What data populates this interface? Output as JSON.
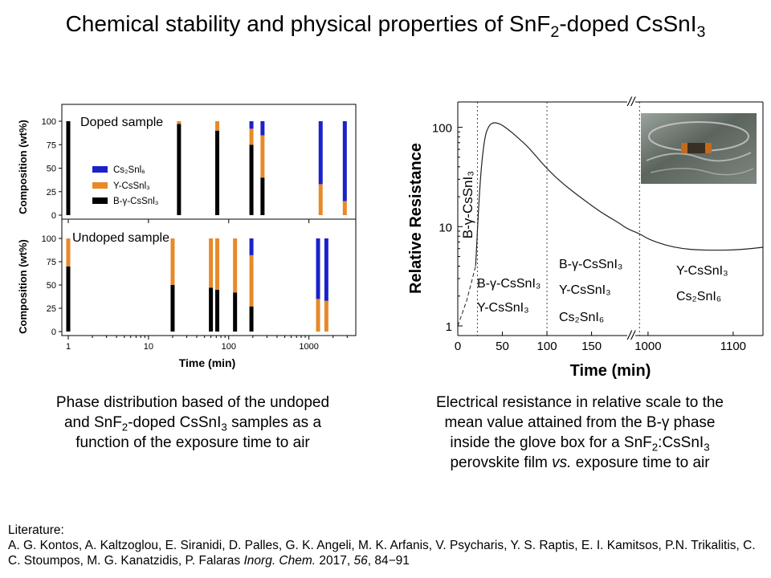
{
  "title": {
    "prefix": "Chemical stability and physical properties of SnF",
    "sub1": "2",
    "mid": "-doped CsSnI",
    "sub2": "3"
  },
  "colors": {
    "black": "#000000",
    "orange": "#e8892a",
    "blue": "#1a22c9",
    "dashed_gray": "#444444"
  },
  "left_chart": {
    "ylabel": "Composition (wt%)",
    "xlabel": "Time (min)",
    "x_ticks": [
      "1",
      "10",
      "100",
      "1000"
    ],
    "y_ticks": [
      "0",
      "25",
      "50",
      "75",
      "100"
    ],
    "panel_top_label": "Doped sample",
    "panel_bottom_label": "Undoped sample",
    "legend": [
      {
        "key": "cs2snl6",
        "label": "Cs₂Snl₆",
        "color": "#1a22c9"
      },
      {
        "key": "gamma",
        "label": "Y-CsSnl₃",
        "color": "#e8892a"
      },
      {
        "key": "bgamma",
        "label": "B-γ-CsSnl₃",
        "color": "#000000"
      }
    ]
  },
  "right_chart": {
    "ylabel": "Relative Resistance",
    "xlabel": "Time (min)",
    "x_ticks_left": [
      "0",
      "50",
      "100",
      "150"
    ],
    "x_ticks_right": [
      "1000",
      "1100"
    ],
    "y_ticks": [
      "1",
      "10",
      "100"
    ],
    "break_mark": "//",
    "region1_vertical": "B-γ-CsSnI₃",
    "region2_line1": "B-γ-CsSnI₃",
    "region2_line2": "Y-CsSnI₃",
    "region3_line1": "B-γ-CsSnI₃",
    "region3_line2": "Y-CsSnI₃",
    "region3_line3": "Cs₂SnI₆",
    "region4_line1": "Y-CsSnI₃",
    "region4_line2": "Cs₂SnI₆"
  },
  "captions": {
    "left_l1": "Phase distribution based of the undoped",
    "left_l2a": "and SnF",
    "left_l2sub": "2",
    "left_l2b": "-doped CsSnI",
    "left_l2sub2": "3",
    "left_l2c": " samples as a",
    "left_l3": "function of the exposure time to air",
    "right_l1": "Electrical resistance in relative scale to the",
    "right_l2": "mean value attained from the B-γ phase",
    "right_l3a": "inside the glove box for a SnF",
    "right_l3sub": "2",
    "right_l3b": ":CsSnI",
    "right_l3sub2": "3",
    "right_l4a": "perovskite film ",
    "right_l4i": "vs.",
    "right_l4b": " exposure time to air"
  },
  "literature": {
    "heading": "Literature:",
    "authors": "A. G. Kontos, A. Kaltzoglou, E. Siranidi, D. Palles, G. K. Angeli, M. K. Arfanis, V. Psycharis, Y. S. Raptis, E. I. Kamitsos, P.N. Trikalitis, C. C. Stoumpos, M. G. Kanatzidis, P. Falaras ",
    "journal": "Inorg. Chem.",
    "year": " 2017, ",
    "volume": "56",
    "pages": ", 84−91"
  },
  "chart_data": [
    {
      "type": "bar",
      "title": "Doped sample",
      "xlabel": "Time (min)",
      "ylabel": "Composition (wt%)",
      "x_scale": "log",
      "ylim": [
        0,
        100
      ],
      "x": [
        1,
        24,
        72,
        192,
        264,
        1400,
        2800
      ],
      "series": [
        {
          "name": "B-γ-CsSnl₃",
          "values": [
            100,
            97,
            90,
            75,
            40,
            0,
            0
          ]
        },
        {
          "name": "Y-CsSnl₃",
          "values": [
            0,
            3,
            10,
            17,
            45,
            33,
            15
          ]
        },
        {
          "name": "Cs₂Snl₆",
          "values": [
            0,
            0,
            0,
            8,
            15,
            67,
            85
          ]
        }
      ]
    },
    {
      "type": "bar",
      "title": "Undoped sample",
      "xlabel": "Time (min)",
      "ylabel": "Composition (wt%)",
      "x_scale": "log",
      "ylim": [
        0,
        100
      ],
      "x": [
        1,
        20,
        60,
        72,
        120,
        192,
        1300,
        1650
      ],
      "series": [
        {
          "name": "B-γ-CsSnl₃",
          "values": [
            70,
            50,
            47,
            45,
            42,
            27,
            0,
            0
          ]
        },
        {
          "name": "Y-CsSnl₃",
          "values": [
            30,
            50,
            53,
            55,
            58,
            55,
            35,
            33
          ]
        },
        {
          "name": "Cs₂Snl₆",
          "values": [
            0,
            0,
            0,
            0,
            0,
            18,
            65,
            67
          ]
        }
      ]
    },
    {
      "type": "line",
      "xlabel": "Time (min)",
      "ylabel": "Relative Resistance",
      "y_scale": "log",
      "ylim": [
        0.8,
        180
      ],
      "x_segments": [
        [
          0,
          190
        ],
        [
          985,
          1135
        ]
      ],
      "x_breaks": [
        "//"
      ],
      "phase_boundaries_min": [
        22,
        100,
        990
      ],
      "series": [
        {
          "x": [
            0,
            10,
            20,
            25,
            30,
            35,
            40,
            45,
            50,
            60,
            70,
            80,
            100,
            120,
            140,
            160,
            180,
            190,
            990,
            1000,
            1020,
            1040,
            1060,
            1080,
            1100,
            1120,
            1135
          ],
          "y": [
            1,
            1.8,
            4,
            30,
            80,
            105,
            112,
            110,
            105,
            90,
            75,
            62,
            38,
            26,
            19,
            14,
            11,
            9.5,
            8.5,
            7.5,
            6.5,
            6.0,
            5.8,
            5.8,
            5.8,
            6.0,
            6.2
          ]
        }
      ]
    }
  ]
}
